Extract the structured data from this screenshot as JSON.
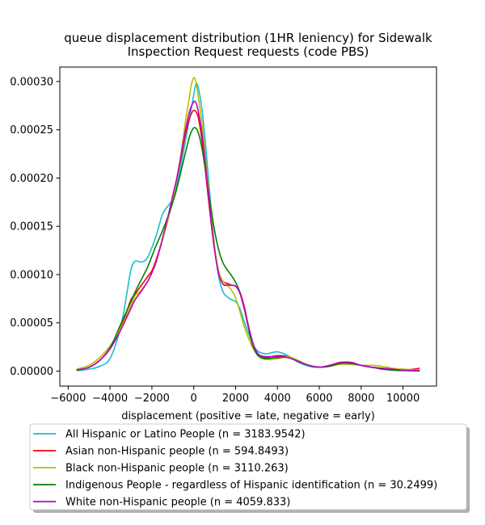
{
  "chart_data": {
    "type": "line",
    "title_line1": "queue displacement distribution (1HR leniency) for Sidewalk",
    "title_line2": "Inspection Request  requests (code PBS)",
    "xlabel": "displacement (positive = late, negative = early)",
    "ylabel": "",
    "xlim": [
      -6400,
      11600
    ],
    "ylim": [
      -1.55e-05,
      0.000315
    ],
    "xticks": [
      -6000,
      -4000,
      -2000,
      0,
      2000,
      4000,
      6000,
      8000,
      10000
    ],
    "xtick_labels": [
      "−6000",
      "−4000",
      "−2000",
      "0",
      "2000",
      "4000",
      "6000",
      "8000",
      "10000"
    ],
    "yticks": [
      0,
      5e-05,
      0.0001,
      0.00015,
      0.0002,
      0.00025,
      0.0003
    ],
    "ytick_labels": [
      "0.00000",
      "0.00005",
      "0.00010",
      "0.00015",
      "0.00020",
      "0.00025",
      "0.00030"
    ],
    "grid": false,
    "legend_position": "below",
    "series": [
      {
        "name": "All Hispanic or Latino People (n = 3183.9542)",
        "color": "#17becf",
        "x": [
          -5600,
          -5000,
          -4500,
          -4000,
          -3500,
          -3200,
          -3000,
          -2800,
          -2500,
          -2200,
          -1800,
          -1500,
          -1200,
          -1000,
          -800,
          -600,
          -400,
          -200,
          0,
          100,
          200,
          400,
          600,
          800,
          1000,
          1200,
          1400,
          1600,
          1800,
          2000,
          2200,
          2400,
          2600,
          2800,
          3000,
          3200,
          3500,
          4000,
          4500,
          5000,
          5500,
          6000,
          6500,
          7000,
          7500,
          8000,
          8500,
          9000,
          9500,
          10000,
          10800
        ],
        "y": [
          5e-07,
          2e-06,
          5e-06,
          1.3e-05,
          4.5e-05,
          8e-05,
          0.000105,
          0.000114,
          0.000113,
          0.000118,
          0.00014,
          0.000162,
          0.000172,
          0.000178,
          0.000194,
          0.000214,
          0.000238,
          0.000262,
          0.000286,
          0.000297,
          0.000295,
          0.00027,
          0.000226,
          0.000175,
          0.000128,
          9.7e-05,
          8.2e-05,
          7.7e-05,
          7.4e-05,
          7.2e-05,
          6.5e-05,
          5.2e-05,
          4e-05,
          2.9e-05,
          2.2e-05,
          1.9e-05,
          1.8e-05,
          2e-05,
          1.6e-05,
          9e-06,
          5e-06,
          4e-06,
          6e-06,
          8e-06,
          8e-06,
          6e-06,
          4e-06,
          3e-06,
          2e-06,
          1e-06,
          5e-07
        ]
      },
      {
        "name": "Asian non-Hispanic people (n = 594.8493)",
        "color": "#ff0000",
        "x": [
          -5600,
          -5000,
          -4500,
          -4000,
          -3500,
          -3200,
          -3000,
          -2800,
          -2500,
          -2200,
          -2000,
          -1800,
          -1500,
          -1200,
          -1000,
          -800,
          -600,
          -400,
          -200,
          0,
          200,
          400,
          600,
          800,
          1000,
          1200,
          1400,
          1600,
          1800,
          2000,
          2200,
          2400,
          2600,
          2800,
          3000,
          3200,
          3500,
          4000,
          4500,
          5000,
          5500,
          6000,
          6500,
          7000,
          7500,
          8000,
          8500,
          9000,
          9500,
          10000,
          10500,
          10800
        ],
        "y": [
          1e-06,
          4e-06,
          1.1e-05,
          2.4e-05,
          4.4e-05,
          6.2e-05,
          7.4e-05,
          8e-05,
          8.9e-05,
          9.8e-05,
          0.000104,
          0.000115,
          0.000136,
          0.000162,
          0.00018,
          0.0002,
          0.000222,
          0.000245,
          0.000262,
          0.00027,
          0.000264,
          0.000238,
          0.000199,
          0.000159,
          0.000125,
          0.000102,
          9.3e-05,
          9.1e-05,
          8.9e-05,
          8.8e-05,
          8.2e-05,
          6.8e-05,
          4.8e-05,
          3e-05,
          1.9e-05,
          1.5e-05,
          1.4e-05,
          1.6e-05,
          1.5e-05,
          1e-05,
          6e-06,
          4e-06,
          6e-06,
          9e-06,
          9e-06,
          6e-06,
          4e-06,
          3e-06,
          2e-06,
          1e-06,
          2e-06,
          3e-06
        ]
      },
      {
        "name": "Black non-Hispanic people (n = 3110.263)",
        "color": "#bcbd00",
        "x": [
          -5600,
          -5000,
          -4500,
          -4000,
          -3500,
          -3000,
          -2800,
          -2500,
          -2200,
          -2000,
          -1800,
          -1500,
          -1200,
          -1000,
          -800,
          -600,
          -400,
          -200,
          -100,
          0,
          100,
          200,
          400,
          600,
          800,
          1000,
          1200,
          1400,
          1600,
          1800,
          2000,
          2200,
          2400,
          2600,
          2800,
          3000,
          3200,
          3500,
          4000,
          4500,
          5000,
          5500,
          6000,
          6500,
          7000,
          7500,
          8000,
          8500,
          9000,
          9500,
          10000,
          10800
        ],
        "y": [
          2e-06,
          6e-06,
          1.4e-05,
          2.6e-05,
          4.4e-05,
          6.8e-05,
          7.8e-05,
          8.4e-05,
          9.3e-05,
          0.000102,
          0.000113,
          0.000135,
          0.000159,
          0.000178,
          0.0002,
          0.000227,
          0.000258,
          0.000285,
          0.000298,
          0.000304,
          0.0003,
          0.000287,
          0.000255,
          0.000212,
          0.000167,
          0.000128,
          0.000103,
          9.3e-05,
          8.9e-05,
          8.4e-05,
          7.6e-05,
          6.2e-05,
          4.7e-05,
          3.5e-05,
          2.5e-05,
          1.8e-05,
          1.4e-05,
          1.2e-05,
          1.3e-05,
          1.5e-05,
          1.1e-05,
          6e-06,
          4e-06,
          5e-06,
          7e-06,
          7e-06,
          6e-06,
          6e-06,
          5e-06,
          3e-06,
          2e-06,
          1e-06
        ]
      },
      {
        "name": "Indigenous People - regardless of Hispanic identification (n = 30.2499)",
        "color": "#008000",
        "x": [
          -5600,
          -5000,
          -4500,
          -4000,
          -3500,
          -3000,
          -2800,
          -2500,
          -2200,
          -2000,
          -1800,
          -1500,
          -1200,
          -1000,
          -800,
          -600,
          -400,
          -200,
          0,
          200,
          400,
          600,
          800,
          1000,
          1200,
          1400,
          1600,
          1800,
          2000,
          2200,
          2400,
          2600,
          2800,
          3000,
          3200,
          3500,
          4000,
          4500,
          5000,
          5500,
          6000,
          6500,
          7000,
          7500,
          8000,
          8500,
          9000,
          9500,
          10000,
          10800
        ],
        "y": [
          1e-06,
          4e-06,
          1.1e-05,
          2.4e-05,
          4.8e-05,
          7.2e-05,
          8.2e-05,
          9.5e-05,
          0.000108,
          0.000119,
          0.00013,
          0.000145,
          0.000162,
          0.000175,
          0.00019,
          0.000208,
          0.000226,
          0.000243,
          0.000252,
          0.000248,
          0.00023,
          0.000202,
          0.000172,
          0.000145,
          0.000125,
          0.000112,
          0.000105,
          9.9e-05,
          9.2e-05,
          8.2e-05,
          6.6e-05,
          4.6e-05,
          2.8e-05,
          1.8e-05,
          1.4e-05,
          1.3e-05,
          1.4e-05,
          1.4e-05,
          1e-05,
          6e-06,
          4e-06,
          5e-06,
          8e-06,
          8e-06,
          6e-06,
          4e-06,
          2e-06,
          1e-06,
          5e-07,
          2e-07
        ]
      },
      {
        "name": "White non-Hispanic people (n = 4059.833)",
        "color": "#bf00bf",
        "x": [
          -5600,
          -5000,
          -4500,
          -4000,
          -3500,
          -3000,
          -2800,
          -2500,
          -2200,
          -2000,
          -1800,
          -1500,
          -1200,
          -1000,
          -800,
          -600,
          -400,
          -200,
          0,
          100,
          200,
          400,
          600,
          800,
          1000,
          1200,
          1400,
          1600,
          1800,
          2000,
          2200,
          2400,
          2600,
          2800,
          3000,
          3200,
          3500,
          4000,
          4500,
          5000,
          5500,
          6000,
          6500,
          7000,
          7500,
          8000,
          8500,
          9000,
          9500,
          10000,
          10800
        ],
        "y": [
          1e-06,
          4e-06,
          1.1e-05,
          2.3e-05,
          4.2e-05,
          6.5e-05,
          7.4e-05,
          8.3e-05,
          9.3e-05,
          0.000102,
          0.000113,
          0.000137,
          0.000163,
          0.000182,
          0.000201,
          0.000224,
          0.000249,
          0.000269,
          0.000279,
          0.000278,
          0.000271,
          0.000245,
          0.000205,
          0.000162,
          0.000125,
          0.0001,
          9e-05,
          8.9e-05,
          8.9e-05,
          8.8e-05,
          8.1e-05,
          6.6e-05,
          4.8e-05,
          3.1e-05,
          2e-05,
          1.6e-05,
          1.5e-05,
          1.5e-05,
          1.4e-05,
          1e-05,
          6e-06,
          4e-06,
          6e-06,
          9e-06,
          9e-06,
          6e-06,
          4e-06,
          3e-06,
          2e-06,
          1e-06,
          5e-07
        ]
      }
    ]
  }
}
